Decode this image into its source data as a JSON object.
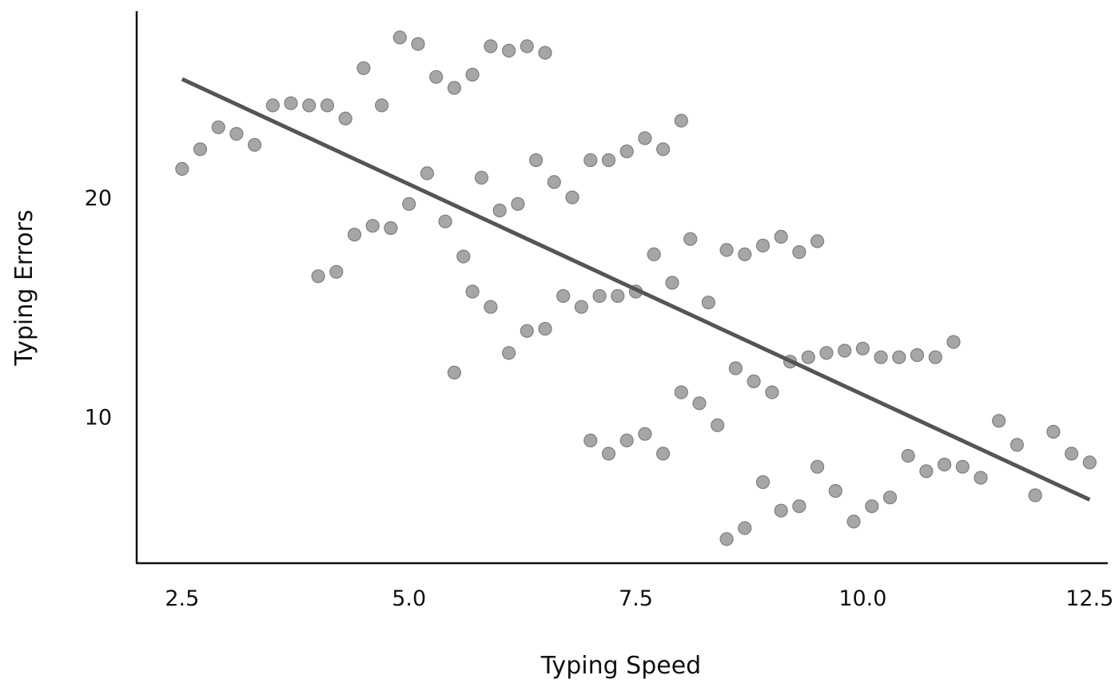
{
  "chart_data": {
    "type": "scatter",
    "title": "",
    "xlabel": "Typing Speed",
    "ylabel": "Typing Errors",
    "xlim": [
      2.0,
      12.7
    ],
    "ylim": [
      3.3,
      28.5
    ],
    "x_ticks": [
      2.5,
      5.0,
      7.5,
      10.0,
      12.5
    ],
    "x_tick_labels": [
      "2.5",
      "5.0",
      "7.5",
      "10.0",
      "12.5"
    ],
    "y_ticks": [
      10,
      20
    ],
    "y_tick_labels": [
      "10",
      "20"
    ],
    "grid": false,
    "legend": "none",
    "point_color": "#a6a6a6",
    "line_color": "#555555",
    "series": [
      {
        "points": [
          [
            2.5,
            21.3
          ],
          [
            2.7,
            22.2
          ],
          [
            2.9,
            23.2
          ],
          [
            3.1,
            22.9
          ],
          [
            3.3,
            22.4
          ],
          [
            3.5,
            24.2
          ],
          [
            3.7,
            24.3
          ],
          [
            3.9,
            24.2
          ],
          [
            4.1,
            24.2
          ],
          [
            4.3,
            23.6
          ],
          [
            4.5,
            25.9
          ],
          [
            4.7,
            24.2
          ],
          [
            4.9,
            27.3
          ],
          [
            5.1,
            27.0
          ],
          [
            5.3,
            25.5
          ],
          [
            5.5,
            25.0
          ],
          [
            5.7,
            25.6
          ],
          [
            5.9,
            26.9
          ],
          [
            6.1,
            26.7
          ],
          [
            6.3,
            26.9
          ],
          [
            6.5,
            26.6
          ],
          [
            4.0,
            16.4
          ],
          [
            4.2,
            16.6
          ],
          [
            4.4,
            18.3
          ],
          [
            4.6,
            18.7
          ],
          [
            4.8,
            18.6
          ],
          [
            5.0,
            19.7
          ],
          [
            5.2,
            21.1
          ],
          [
            5.4,
            18.9
          ],
          [
            5.6,
            17.3
          ],
          [
            5.8,
            20.9
          ],
          [
            6.0,
            19.4
          ],
          [
            6.2,
            19.7
          ],
          [
            6.4,
            21.7
          ],
          [
            6.6,
            20.7
          ],
          [
            6.8,
            20.0
          ],
          [
            7.0,
            21.7
          ],
          [
            7.2,
            21.7
          ],
          [
            7.4,
            22.1
          ],
          [
            7.6,
            22.7
          ],
          [
            7.8,
            22.2
          ],
          [
            8.0,
            23.5
          ],
          [
            5.5,
            12.0
          ],
          [
            5.7,
            15.7
          ],
          [
            5.9,
            15.0
          ],
          [
            6.1,
            12.9
          ],
          [
            6.3,
            13.9
          ],
          [
            6.5,
            14.0
          ],
          [
            6.7,
            15.5
          ],
          [
            6.9,
            15.0
          ],
          [
            7.1,
            15.5
          ],
          [
            7.3,
            15.5
          ],
          [
            7.5,
            15.7
          ],
          [
            7.7,
            17.4
          ],
          [
            7.9,
            16.1
          ],
          [
            8.1,
            18.1
          ],
          [
            8.3,
            15.2
          ],
          [
            8.5,
            17.6
          ],
          [
            8.7,
            17.4
          ],
          [
            8.9,
            17.8
          ],
          [
            9.1,
            18.2
          ],
          [
            9.3,
            17.5
          ],
          [
            9.5,
            18.0
          ],
          [
            7.0,
            8.9
          ],
          [
            7.2,
            8.3
          ],
          [
            7.4,
            8.9
          ],
          [
            7.6,
            9.2
          ],
          [
            7.8,
            8.3
          ],
          [
            8.0,
            11.1
          ],
          [
            8.2,
            10.6
          ],
          [
            8.4,
            9.6
          ],
          [
            8.6,
            12.2
          ],
          [
            8.8,
            11.6
          ],
          [
            9.0,
            11.1
          ],
          [
            9.2,
            12.5
          ],
          [
            9.4,
            12.7
          ],
          [
            9.6,
            12.9
          ],
          [
            9.8,
            13.0
          ],
          [
            10.0,
            13.1
          ],
          [
            10.2,
            12.7
          ],
          [
            10.4,
            12.7
          ],
          [
            10.6,
            12.8
          ],
          [
            10.8,
            12.7
          ],
          [
            11.0,
            13.4
          ],
          [
            8.5,
            4.4
          ],
          [
            8.7,
            4.9
          ],
          [
            8.9,
            7.0
          ],
          [
            9.1,
            5.7
          ],
          [
            9.3,
            5.9
          ],
          [
            9.5,
            7.7
          ],
          [
            9.7,
            6.6
          ],
          [
            9.9,
            5.2
          ],
          [
            10.1,
            5.9
          ],
          [
            10.3,
            6.3
          ],
          [
            10.5,
            8.2
          ],
          [
            10.7,
            7.5
          ],
          [
            10.9,
            7.8
          ],
          [
            11.1,
            7.7
          ],
          [
            11.3,
            7.2
          ],
          [
            11.5,
            9.8
          ],
          [
            11.7,
            8.7
          ],
          [
            11.9,
            6.4
          ],
          [
            12.1,
            9.3
          ],
          [
            12.3,
            8.3
          ],
          [
            12.5,
            7.9
          ]
        ]
      }
    ],
    "trend_line": {
      "x": [
        2.5,
        12.5
      ],
      "y": [
        25.4,
        6.2
      ]
    }
  }
}
